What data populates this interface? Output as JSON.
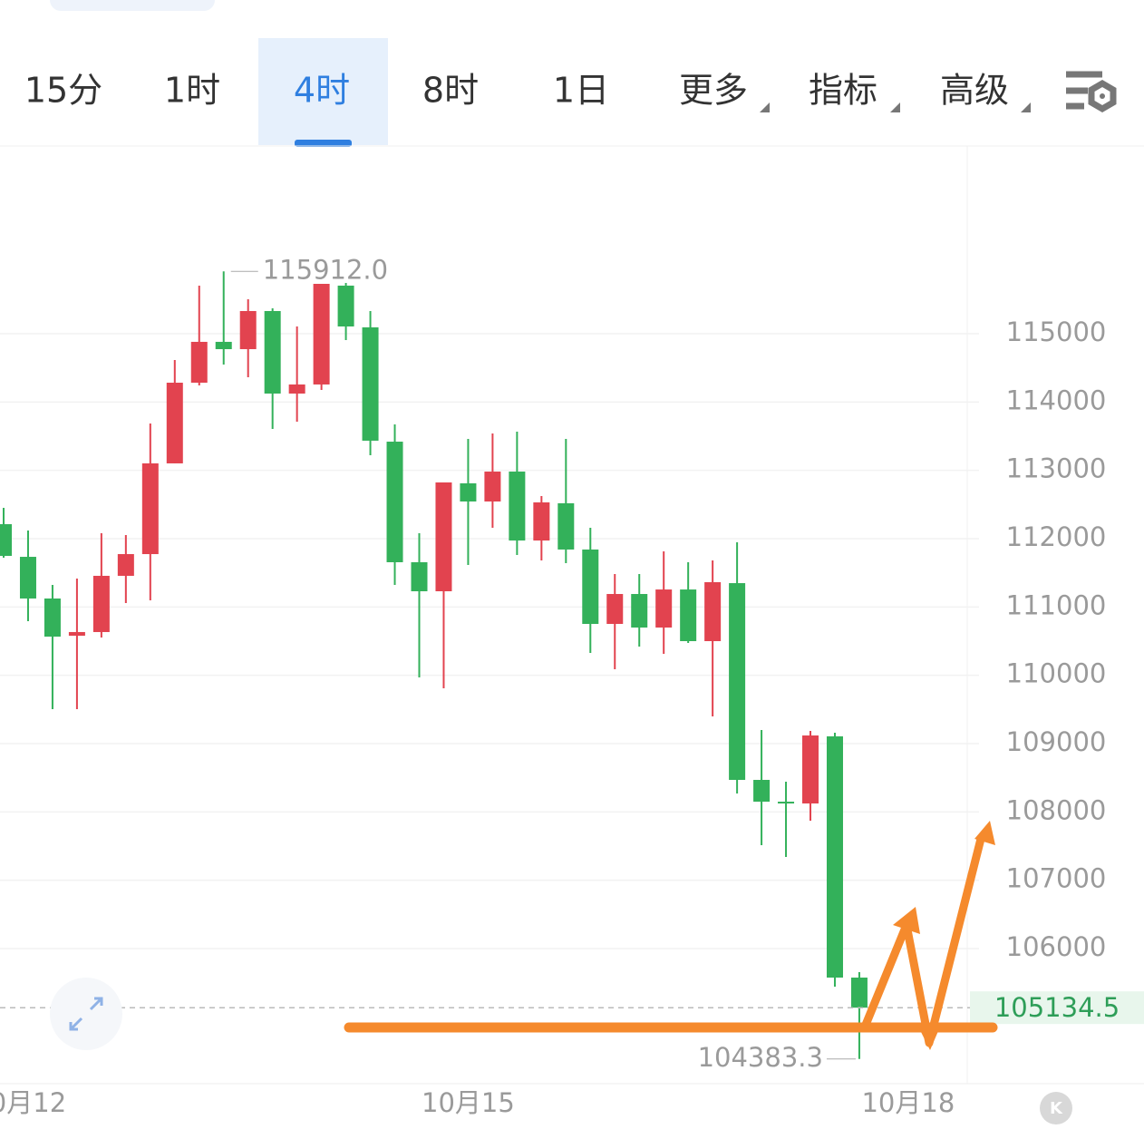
{
  "tabs": [
    "15分",
    "1时",
    "4时",
    "8时",
    "1日",
    "更多",
    "指标",
    "高级"
  ],
  "active_tab": 2,
  "chart_data": {
    "type": "candlestick",
    "up_color": "#e2434f",
    "down_color": "#33b15a",
    "categories": [
      null,
      null,
      null,
      null,
      null,
      null,
      null,
      null,
      null,
      null,
      null,
      null,
      null,
      null,
      null,
      null,
      null,
      null,
      null,
      null,
      null,
      null,
      null,
      null,
      null,
      null,
      null,
      null,
      null,
      null,
      null,
      null,
      null,
      null,
      null,
      null
    ],
    "open": [
      112212,
      111734,
      111124,
      110579,
      110633,
      111456,
      111774,
      113102,
      114283,
      114881,
      114774,
      115332,
      114124,
      114257,
      115704,
      115093,
      113420,
      111655,
      111230,
      112810,
      112544,
      112982,
      111973,
      112518,
      111841,
      110752,
      111190,
      110699,
      111256,
      110500,
      111349,
      108469,
      108150,
      108124,
      109106,
      105575
    ],
    "high": [
      112451,
      112119,
      111323,
      111416,
      112079,
      112053,
      113686,
      114615,
      115704,
      115912,
      115504,
      115372,
      115106,
      115730,
      115743,
      115332,
      113672,
      112079,
      112823,
      113460,
      113540,
      113566,
      112624,
      113460,
      112159,
      111482,
      111482,
      111814,
      111655,
      111681,
      111947,
      109199,
      108442,
      109185,
      109159,
      105654
    ],
    "low": [
      111721,
      110792,
      109504,
      109504,
      110553,
      111057,
      111097,
      113102,
      114243,
      114549,
      114363,
      113606,
      113712,
      114177,
      114907,
      113221,
      111323,
      109969,
      109809,
      111615,
      112159,
      111761,
      111681,
      111641,
      110327,
      110088,
      110420,
      110314,
      110473,
      109398,
      108270,
      107513,
      107340,
      107871,
      105442,
      104383.3
    ],
    "close": [
      111748,
      111124,
      110566,
      110633,
      111456,
      111774,
      113102,
      114283,
      114881,
      114774,
      115332,
      114124,
      114257,
      115730,
      115106,
      113434,
      111655,
      111230,
      112823,
      112544,
      112982,
      111973,
      112531,
      111841,
      110752,
      111190,
      110699,
      111256,
      110500,
      111363,
      108469,
      108150,
      108124,
      109119,
      105575,
      105134.5
    ],
    "ylim": [
      104022,
      117761
    ],
    "yticks": [
      106000,
      107000,
      108000,
      109000,
      110000,
      111000,
      112000,
      113000,
      114000,
      115000
    ],
    "xticks": [
      {
        "value": 1,
        "label": "0月12"
      },
      {
        "value": 19,
        "label": "10月15"
      },
      {
        "value": 37,
        "label": "10月18"
      }
    ],
    "grid": true,
    "high_marker": {
      "value": 115912,
      "label": "115912.0"
    },
    "low_marker": 104383.3,
    "last_price": 105134.5
  }
}
